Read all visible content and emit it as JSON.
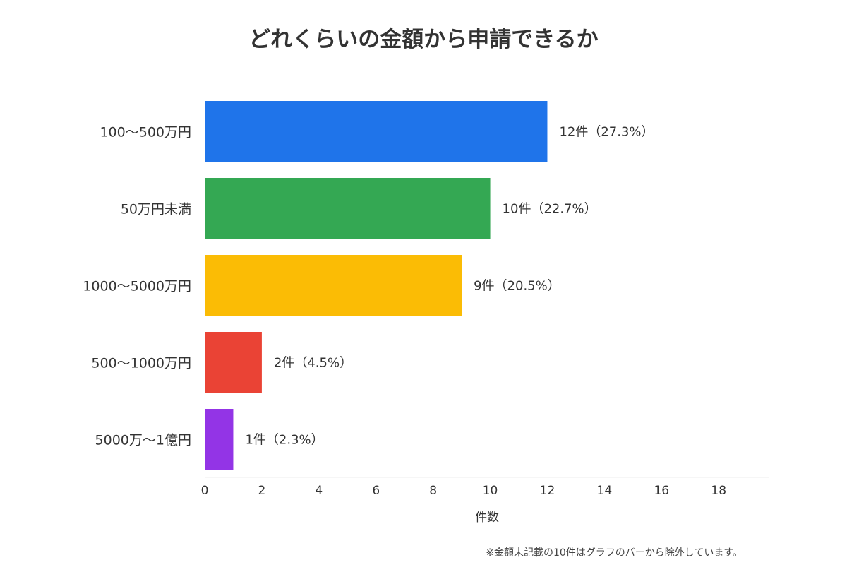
{
  "chart_data": {
    "type": "bar",
    "orientation": "horizontal",
    "title": "どれくらいの金額から申請できるか",
    "xlabel": "件数",
    "ylabel": "",
    "xlim": [
      0,
      19.75
    ],
    "x_ticks": [
      0,
      2,
      4,
      6,
      8,
      10,
      12,
      14,
      16,
      18
    ],
    "grid": false,
    "legend": "none",
    "categories": [
      "100〜500万円",
      "50万円未満",
      "1000〜5000万円",
      "500〜1000万円",
      "5000万〜1億円"
    ],
    "values": [
      12,
      10,
      9,
      2,
      1
    ],
    "data_labels": [
      "12件（27.3%）",
      "10件（22.7%）",
      "9件（20.5%）",
      "2件（4.5%）",
      "1件（2.3%）"
    ],
    "colors": [
      "#1f74ea",
      "#34a853",
      "#fbbc05",
      "#ea4335",
      "#9334e6"
    ],
    "footnote": "※金額未記載の10件はグラフのバーから除外しています。"
  }
}
